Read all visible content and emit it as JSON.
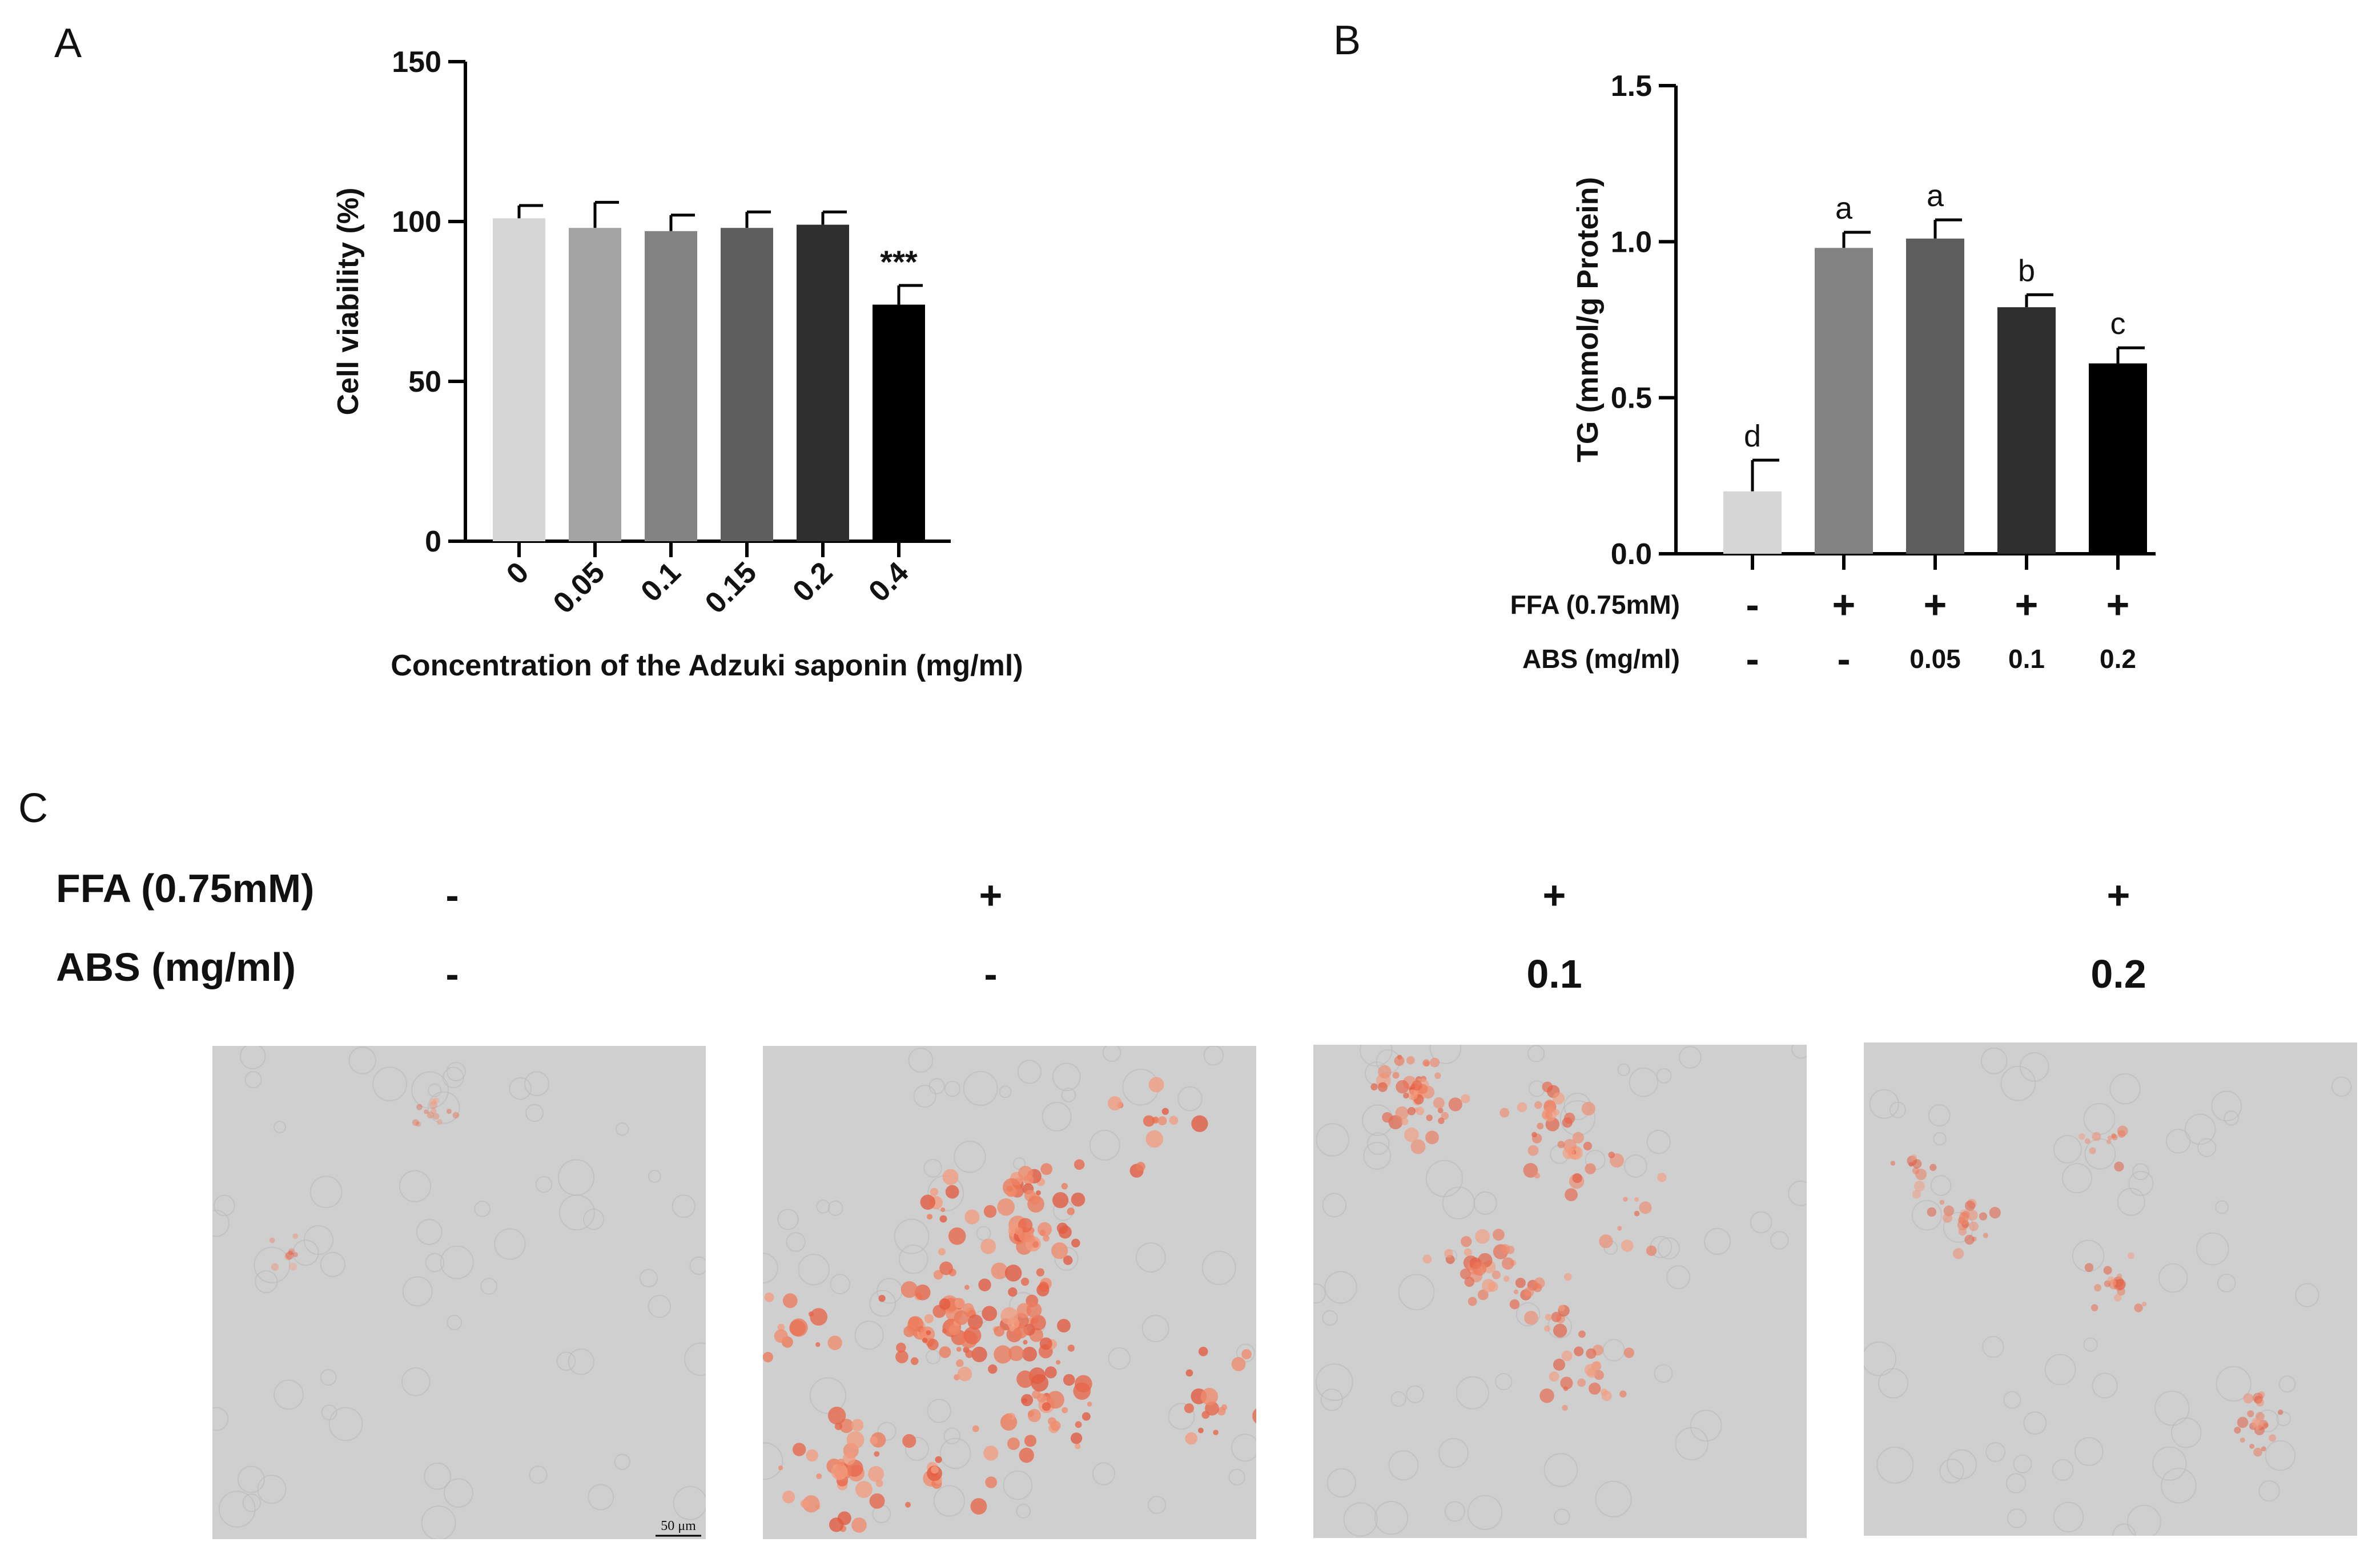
{
  "panel_labels": [
    "A",
    "B",
    "C"
  ],
  "chart_data": [
    {
      "type": "bar",
      "panel": "A",
      "categories": [
        "0",
        "0.05",
        "0.1",
        "0.15",
        "0.2",
        "0.4"
      ],
      "values": [
        101,
        98,
        97,
        98,
        99,
        74
      ],
      "errors": [
        4,
        8,
        5,
        5,
        4,
        6
      ],
      "colors": [
        "#d6d6d6",
        "#a3a3a3",
        "#838383",
        "#5e5e5e",
        "#2f2f2f",
        "#000000"
      ],
      "significance": [
        "",
        "",
        "",
        "",
        "",
        "***"
      ],
      "xlabel": "Concentration of the Adzuki saponin (mg/ml)",
      "ylabel": "Cell viability (%)",
      "ylim": [
        0,
        150
      ],
      "yticks": [
        "0",
        "50",
        "100",
        "150"
      ],
      "grid": false
    },
    {
      "type": "bar",
      "panel": "B",
      "values": [
        0.2,
        0.98,
        1.01,
        0.79,
        0.61
      ],
      "errors": [
        0.1,
        0.05,
        0.06,
        0.04,
        0.05
      ],
      "colors": [
        "#d6d6d6",
        "#838383",
        "#5e5e5e",
        "#2f2f2f",
        "#000000"
      ],
      "letters": [
        "d",
        "a",
        "a",
        "b",
        "c"
      ],
      "ylabel": "TG (mmol/g Protein)",
      "ylim": [
        0,
        1.5
      ],
      "yticks": [
        "0.0",
        "0.5",
        "1.0",
        "1.5"
      ],
      "treatment_rows": [
        {
          "label": "FFA (0.75mM)",
          "values": [
            "-",
            "+",
            "+",
            "+",
            "+"
          ]
        },
        {
          "label": "ABS  (mg/ml)",
          "values": [
            "-",
            "-",
            "0.05",
            "0.1",
            "0.2"
          ]
        }
      ],
      "grid": false
    }
  ],
  "panel_c": {
    "rows": [
      {
        "label": "FFA (0.75mM)",
        "values": [
          "-",
          "+",
          "+",
          "+"
        ]
      },
      {
        "label": "ABS (mg/ml)",
        "values": [
          "-",
          "-",
          "0.1",
          "0.2"
        ]
      }
    ],
    "scale_bar": "50 μm",
    "stain_density": [
      0.12,
      0.85,
      0.6,
      0.35
    ],
    "colors": {
      "background": "#cfcfcf",
      "stain": "#e8664a"
    }
  }
}
